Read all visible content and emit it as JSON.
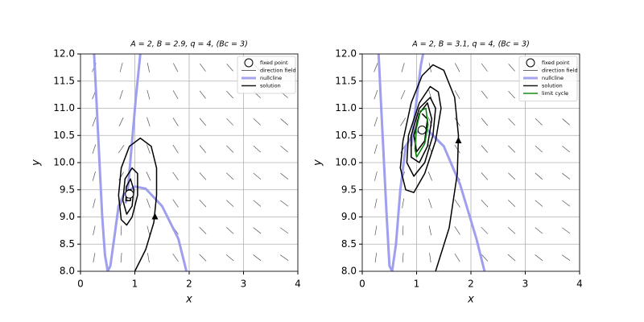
{
  "chart_data": [
    {
      "type": "line",
      "title": "A = 2,  B = 2.9,  q = 4,  (Bc = 3)",
      "xlabel": "x",
      "ylabel": "y",
      "xlim": [
        0,
        4
      ],
      "ylim": [
        8,
        12
      ],
      "xticks": [
        0,
        1,
        2,
        3,
        4
      ],
      "yticks": [
        {
          "value": 8,
          "label": "8.0"
        },
        8.5,
        {
          "value": 9,
          "label": "9.0"
        },
        9.5,
        {
          "value": 10,
          "label": "10.0"
        },
        10.5,
        {
          "value": 11,
          "label": "11.0"
        },
        11.5,
        {
          "value": 12,
          "label": "12.0"
        }
      ],
      "grid": true,
      "legend": "upper right",
      "fixed_point": {
        "name": "fixed point",
        "x": 0.9,
        "y": 9.42
      },
      "field": {
        "name": "direction field",
        "color": "#555555",
        "x": [
          0.25,
          0.75,
          1.25,
          1.75,
          2.25,
          2.75,
          3.25,
          3.75
        ],
        "y": [
          8.25,
          8.75,
          9.25,
          9.75,
          10.25,
          10.75,
          11.25,
          11.75
        ],
        "angles": [
          [
            80,
            85,
            -80,
            -55,
            -45,
            -40,
            -38,
            -35
          ],
          [
            78,
            88,
            -75,
            -55,
            -45,
            -42,
            -38,
            -36
          ],
          [
            76,
            70,
            -70,
            -55,
            -47,
            -42,
            -40,
            -37
          ],
          [
            74,
            60,
            -65,
            -55,
            -48,
            -43,
            -40,
            -38
          ],
          [
            72,
            55,
            -70,
            -57,
            -50,
            -45,
            -42,
            -40
          ],
          [
            70,
            65,
            -72,
            -58,
            -50,
            -46,
            -43,
            -41
          ],
          [
            68,
            72,
            -75,
            -60,
            -52,
            -47,
            -44,
            -42
          ],
          [
            66,
            75,
            -78,
            -62,
            -53,
            -48,
            -45,
            -43
          ]
        ]
      },
      "series": [
        {
          "name": "nullcline",
          "color": "#9a9aee",
          "x": [
            0.25,
            0.3,
            0.35,
            0.4,
            0.45,
            0.5,
            0.55,
            0.62,
            0.7,
            0.8,
            1.0,
            1.2,
            1.5,
            1.8,
            1.95
          ],
          "y": [
            12,
            11,
            10,
            9,
            8.3,
            8.0,
            8.1,
            8.6,
            9.2,
            9.42,
            9.56,
            9.52,
            9.2,
            8.6,
            8.0
          ]
        },
        {
          "name": null,
          "color": "#9a9aee",
          "x": [
            0.83,
            0.88,
            0.95,
            1.02,
            1.1
          ],
          "y": [
            9.25,
            9.6,
            10.4,
            11.2,
            12
          ]
        },
        {
          "name": "solution",
          "color": "#000000",
          "arrow": {
            "x": 1.37,
            "y": 9.0
          },
          "x": [
            1.0,
            1.2,
            1.35,
            1.4,
            1.4,
            1.3,
            1.1,
            0.9,
            0.75,
            0.7,
            0.75,
            0.85,
            0.95,
            1.05,
            1.05,
            0.95,
            0.82,
            0.78,
            0.85,
            0.95,
            0.98,
            0.92,
            0.84,
            0.84,
            0.92,
            0.93,
            0.88,
            0.9
          ],
          "y": [
            8.0,
            8.4,
            8.9,
            9.4,
            9.9,
            10.3,
            10.45,
            10.3,
            9.9,
            9.4,
            8.95,
            8.85,
            9.0,
            9.4,
            9.8,
            9.9,
            9.7,
            9.3,
            9.05,
            9.2,
            9.5,
            9.7,
            9.55,
            9.3,
            9.3,
            9.5,
            9.5,
            9.42
          ]
        }
      ]
    },
    {
      "type": "line",
      "title": "A = 2,  B = 3.1,  q = 4,  (Bc = 3)",
      "xlabel": "x",
      "ylabel": "y",
      "xlim": [
        0,
        4
      ],
      "ylim": [
        8,
        12
      ],
      "xticks": [
        0,
        1,
        2,
        3,
        4
      ],
      "yticks": [
        {
          "value": 8,
          "label": "8.0"
        },
        8.5,
        {
          "value": 9,
          "label": "9.0"
        },
        9.5,
        {
          "value": 10,
          "label": "10.0"
        },
        10.5,
        {
          "value": 11,
          "label": "11.0"
        },
        11.5,
        {
          "value": 12,
          "label": "12.0"
        }
      ],
      "grid": true,
      "legend": "upper right",
      "fixed_point": {
        "name": "fixed point",
        "x": 1.1,
        "y": 10.6
      },
      "field": {
        "name": "direction field",
        "color": "#555555",
        "x": [
          0.25,
          0.75,
          1.25,
          1.75,
          2.25,
          2.75,
          3.25,
          3.75
        ],
        "y": [
          8.25,
          8.75,
          9.25,
          9.75,
          10.25,
          10.75,
          11.25,
          11.75
        ],
        "angles": [
          [
            82,
            86,
            -82,
            -58,
            -47,
            -41,
            -38,
            -35
          ],
          [
            80,
            88,
            -78,
            -57,
            -46,
            -42,
            -39,
            -36
          ],
          [
            78,
            80,
            -72,
            -56,
            -47,
            -43,
            -40,
            -37
          ],
          [
            76,
            70,
            -68,
            -56,
            -48,
            -44,
            -41,
            -38
          ],
          [
            74,
            60,
            -66,
            -57,
            -49,
            -45,
            -42,
            -39
          ],
          [
            72,
            58,
            -70,
            -58,
            -50,
            -46,
            -43,
            -41
          ],
          [
            70,
            66,
            -74,
            -60,
            -52,
            -47,
            -44,
            -42
          ],
          [
            68,
            74,
            -77,
            -62,
            -53,
            -48,
            -45,
            -43
          ]
        ]
      },
      "series": [
        {
          "name": "nullcline",
          "color": "#9a9aee",
          "x": [
            0.3,
            0.35,
            0.4,
            0.45,
            0.5,
            0.55,
            0.62,
            0.7,
            0.8,
            0.95,
            1.2,
            1.5,
            1.8,
            2.1,
            2.25
          ],
          "y": [
            12,
            11,
            10,
            9,
            8.1,
            8.0,
            8.5,
            9.5,
            10.3,
            10.55,
            10.6,
            10.3,
            9.6,
            8.6,
            8.0
          ]
        },
        {
          "name": null,
          "color": "#9a9aee",
          "x": [
            0.9,
            0.97,
            1.03,
            1.08,
            1.12
          ],
          "y": [
            10.3,
            10.9,
            11.4,
            11.8,
            12
          ]
        },
        {
          "name": "solution",
          "color": "#000000",
          "arrow": {
            "x": 1.77,
            "y": 10.4
          },
          "x": [
            1.35,
            1.6,
            1.75,
            1.77,
            1.7,
            1.5,
            1.3,
            1.1,
            0.9,
            0.75,
            0.7,
            0.8,
            0.95,
            1.15,
            1.35,
            1.45,
            1.4,
            1.25,
            1.05,
            0.85,
            0.82,
            0.95,
            1.15,
            1.3,
            1.35,
            1.25,
            1.05,
            0.9,
            0.9,
            1.05,
            1.2,
            1.28,
            1.2,
            1.05,
            0.95,
            1.0,
            1.15,
            1.2,
            1.1
          ],
          "y": [
            8.0,
            8.8,
            9.8,
            10.5,
            11.2,
            11.7,
            11.8,
            11.6,
            11.1,
            10.4,
            9.9,
            9.5,
            9.45,
            9.8,
            10.4,
            11.0,
            11.3,
            11.4,
            11.1,
            10.5,
            10.0,
            9.75,
            10.0,
            10.5,
            11.0,
            11.2,
            11.0,
            10.5,
            10.1,
            10.0,
            10.3,
            10.8,
            11.1,
            10.9,
            10.5,
            10.2,
            10.4,
            10.8,
            10.9
          ]
        },
        {
          "name": "limit cycle",
          "color": "#008000",
          "x": [
            1.0,
            1.15,
            1.21,
            1.17,
            1.07,
            0.99,
            0.97,
            1.0
          ],
          "y": [
            10.1,
            10.35,
            10.7,
            11.0,
            10.95,
            10.6,
            10.25,
            10.1
          ]
        }
      ]
    }
  ]
}
